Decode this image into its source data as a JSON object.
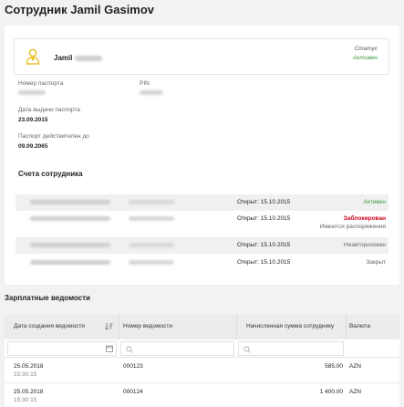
{
  "page": {
    "title": "Сотрудник Jamil Gasimov"
  },
  "employee": {
    "first_name": "Jamil",
    "status_label": "Статус",
    "status_value": "Активен",
    "fields": {
      "passport_number_label": "Номер паспорта",
      "pin_label": "PIN",
      "issue_date_label": "Дата выдачи паспорта",
      "issue_date_value": "23.09.2015",
      "valid_until_label": "Паспорт действителен до",
      "valid_until_value": "09.09.2065"
    }
  },
  "accounts": {
    "title": "Счета сотрудника",
    "rows": [
      {
        "opened": "Открыт: 15.10.2015",
        "status": "Активен",
        "status_color": "#3a9d3a",
        "sub": ""
      },
      {
        "opened": "Открыт: 15.10.2015",
        "status": "Заблокирован",
        "status_color": "#d0021b",
        "sub": "Имеются распоряжения"
      },
      {
        "opened": "Открыт: 15.10.2015",
        "status": "Неавторизован",
        "status_color": "#666666",
        "sub": ""
      },
      {
        "opened": "Открыт: 15.10.2015",
        "status": "Закрыт",
        "status_color": "#666666",
        "sub": ""
      }
    ]
  },
  "payroll": {
    "title": "Зарплатные ведомости",
    "columns": {
      "created": "Дата создания ведомости",
      "number": "Номер ведомости",
      "amount": "Начисленная сумма сотруднику",
      "currency": "Валюта"
    },
    "rows": [
      {
        "date": "25.05.2018",
        "time": "15:30:15",
        "number": "000123",
        "amount": "585.00",
        "currency": "AZN"
      },
      {
        "date": "25.05.2018",
        "time": "15:30:15",
        "number": "000124",
        "amount": "1 400.00",
        "currency": "AZN"
      }
    ]
  },
  "colors": {
    "active": "#3a9d3a",
    "blocked": "#d0021b",
    "avatar": "#e8b400"
  }
}
